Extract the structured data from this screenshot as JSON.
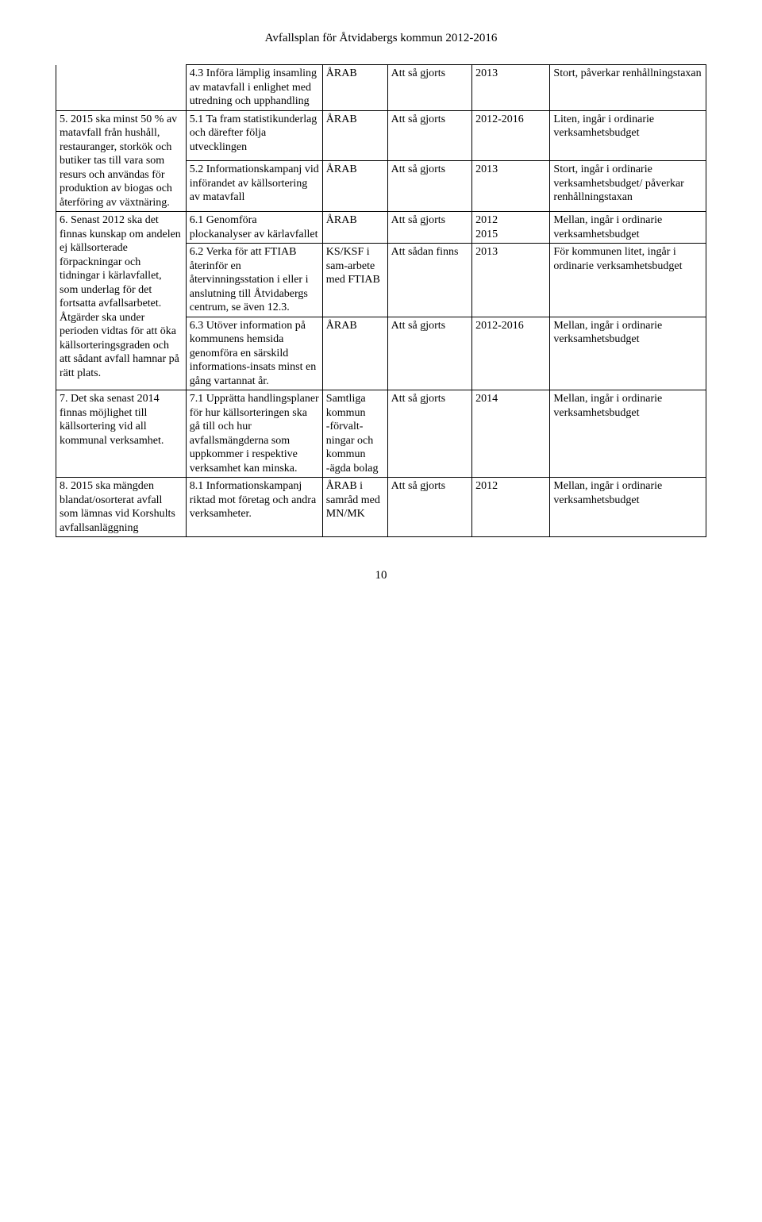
{
  "header": {
    "title": "Avfallsplan för Åtvidabergs kommun 2012-2016"
  },
  "table": {
    "rows": [
      {
        "c1_no_top": true,
        "c1": "",
        "c2": "4.3 Införa lämplig insamling av matavfall i enlighet med utredning och upphandling",
        "c3": "ÅRAB",
        "c4": "Att så gjorts",
        "c5": "2013",
        "c6": "Stort, påverkar renhållningstaxan"
      },
      {
        "rowspan_c1": 2,
        "c1": "5. 2015 ska minst 50 % av matavfall från hushåll, restauranger, storkök och butiker tas till vara som resurs och användas för produktion av biogas och återföring av växtnäring.",
        "c2": "5.1 Ta fram statistikunderlag och därefter följa utvecklingen",
        "c3": "ÅRAB",
        "c4": "Att så gjorts",
        "c5": "2012-2016",
        "c6": "Liten, ingår i ordinarie verksamhetsbudget"
      },
      {
        "c2": "5.2 Informationskampanj vid införandet av källsortering av matavfall",
        "c3": "ÅRAB",
        "c4": "Att så gjorts",
        "c5": "2013",
        "c6": "Stort, ingår i ordinarie verksamhetsbudget/ påverkar renhållningstaxan"
      },
      {
        "rowspan_c1": 3,
        "c1": "6. Senast 2012 ska det finnas kunskap om andelen ej källsorterade förpackningar och tidningar i kärlavfallet, som underlag för det fortsatta avfallsarbetet. Åtgärder ska under perioden vidtas för att öka källsorteringsgraden och att sådant avfall hamnar på rätt plats.",
        "c2": "6.1 Genomföra plockanalyser av kärlavfallet",
        "c3": "ÅRAB",
        "c4": "Att så gjorts",
        "c5": "2012\n2015",
        "c6": "Mellan, ingår i ordinarie verksamhetsbudget"
      },
      {
        "c2": "6.2 Verka för att FTIAB återinför en återvinningsstation i eller i anslutning till Åtvidabergs centrum, se även 12.3.",
        "c3": "KS/KSF i sam-arbete med FTIAB",
        "c4": "Att sådan finns",
        "c5": "2013",
        "c6": "För kommunen litet, ingår i ordinarie verksamhetsbudget"
      },
      {
        "c2": "6.3 Utöver information på kommunens hemsida genomföra en särskild informations-insats minst en gång vartannat år.",
        "c3": "ÅRAB",
        "c4": "Att så gjorts",
        "c5": "2012-2016",
        "c6": "Mellan, ingår i ordinarie verksamhetsbudget"
      },
      {
        "c1": "7. Det ska senast 2014 finnas möjlighet till källsortering vid all kommunal verksamhet.",
        "c2": "7.1 Upprätta handlingsplaner för hur källsorteringen ska gå till och hur avfallsmängderna som uppkommer i respektive verksamhet kan minska.",
        "c3": "Samtliga kommun\n-förvalt-ningar och kommun\n-ägda bolag",
        "c4": "Att så gjorts",
        "c5": "2014",
        "c6": "Mellan, ingår i ordinarie verksamhetsbudget"
      },
      {
        "c1": "8. 2015 ska mängden blandat/osorterat avfall som lämnas vid Korshults avfallsanläggning",
        "c2": "8.1 Informationskampanj riktad mot företag och andra verksamheter.",
        "c3": "ÅRAB i samråd med MN/MK",
        "c4": "Att så gjorts",
        "c5": "2012",
        "c6": "Mellan, ingår i ordinarie verksamhetsbudget"
      }
    ]
  },
  "footer": {
    "page_number": "10"
  }
}
